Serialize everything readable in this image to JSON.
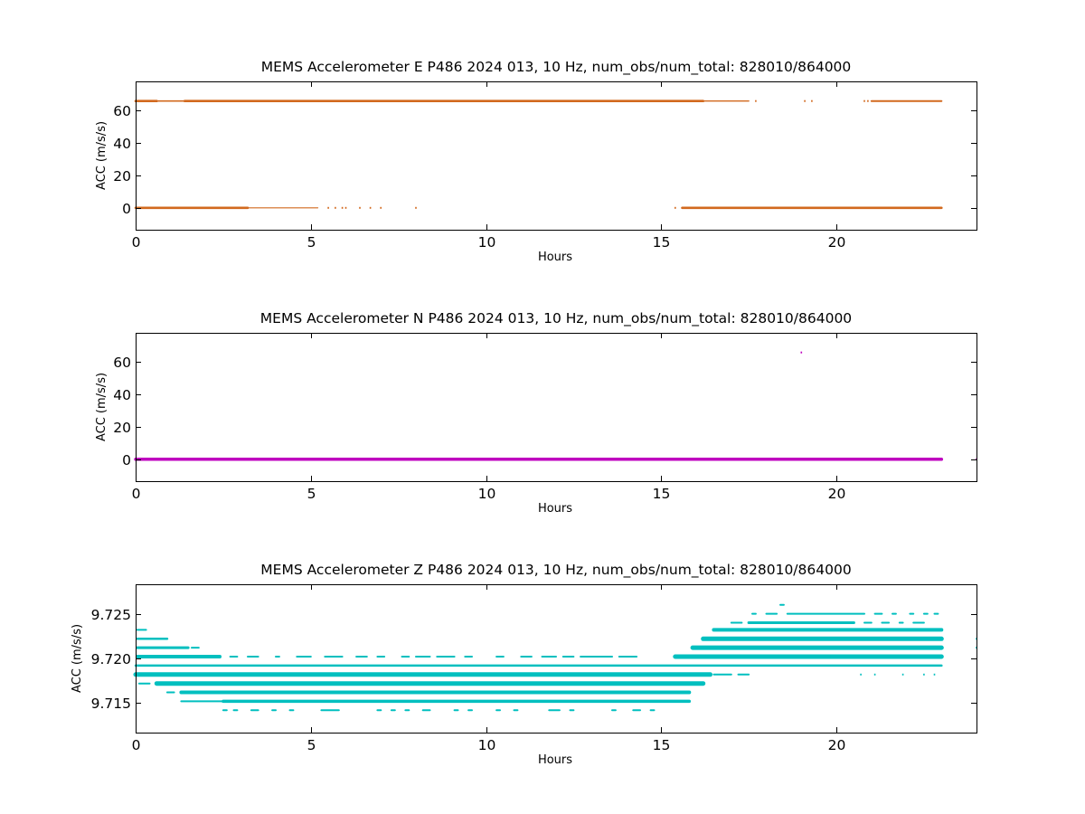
{
  "chart_data": [
    {
      "type": "scatter",
      "title": "MEMS Accelerometer E P486 2024 013, 10 Hz, num_obs/num_total: 828010/864000",
      "xlabel": "Hours",
      "ylabel": "ACC (m/s/s)",
      "xlim": [
        0,
        24
      ],
      "ylim": [
        -13.5,
        78
      ],
      "xticks": [
        0,
        5,
        10,
        15,
        20
      ],
      "yticks": [
        0,
        20,
        40,
        60
      ],
      "color": "#d2691e",
      "series": [
        {
          "bands": [
            {
              "y": 65.9,
              "segments": [
                [
                  0,
                  0.6,
                  2.6
                ],
                [
                  0.6,
                  1.4,
                  1.6
                ],
                [
                  1.4,
                  16.2,
                  2.6
                ],
                [
                  16.2,
                  17.5,
                  1.4
                ],
                [
                  21.0,
                  23.0,
                  2.0
                ]
              ]
            },
            {
              "y": 0.0,
              "segments": [
                [
                  0,
                  3.2,
                  2.6
                ],
                [
                  3.2,
                  5.2,
                  1.2
                ],
                [
                  15.6,
                  23.0,
                  2.6
                ]
              ]
            }
          ],
          "points": [
            [
              17.7,
              65.9
            ],
            [
              19.1,
              65.9
            ],
            [
              19.3,
              65.9
            ],
            [
              20.8,
              65.9
            ],
            [
              20.9,
              65.9
            ],
            [
              5.5,
              0
            ],
            [
              5.7,
              0
            ],
            [
              5.9,
              0
            ],
            [
              6.0,
              0
            ],
            [
              6.4,
              0
            ],
            [
              6.7,
              0
            ],
            [
              7.0,
              0
            ],
            [
              8.0,
              0
            ],
            [
              15.4,
              0
            ]
          ]
        }
      ]
    },
    {
      "type": "scatter",
      "title": "MEMS Accelerometer N P486 2024 013, 10 Hz, num_obs/num_total: 828010/864000",
      "xlabel": "Hours",
      "ylabel": "ACC (m/s/s)",
      "xlim": [
        0,
        24
      ],
      "ylim": [
        -13.5,
        78
      ],
      "xticks": [
        0,
        5,
        10,
        15,
        20
      ],
      "yticks": [
        0,
        20,
        40,
        60
      ],
      "color": "#bf00bf",
      "series": [
        {
          "bands": [
            {
              "y": 0.0,
              "segments": [
                [
                  0,
                  23.0,
                  3.5
                ]
              ]
            }
          ],
          "points": [
            [
              19.0,
              65.9
            ],
            [
              24.0,
              0.0
            ]
          ]
        }
      ]
    },
    {
      "type": "scatter",
      "title": "MEMS Accelerometer Z P486 2024 013, 10 Hz, num_obs/num_total: 828010/864000",
      "xlabel": "Hours",
      "ylabel": "ACC (m/s/s)",
      "xlim": [
        0,
        24
      ],
      "ylim": [
        9.7117,
        9.7283
      ],
      "xticks": [
        0,
        5,
        10,
        15,
        20
      ],
      "yticks": [
        9.715,
        9.72,
        9.725
      ],
      "ytick_labels": [
        "9.715",
        "9.720",
        "9.725"
      ],
      "color": "#00bfbf",
      "series": [
        {
          "bands": [
            {
              "y": 9.726,
              "segments": [
                [
                  18.4,
                  18.5,
                  2
                ]
              ]
            },
            {
              "y": 9.725,
              "segments": [
                [
                  17.6,
                  17.7,
                  2
                ],
                [
                  18.0,
                  18.3,
                  2
                ],
                [
                  18.6,
                  20.8,
                  2
                ],
                [
                  21.1,
                  21.3,
                  2
                ],
                [
                  21.6,
                  21.7,
                  2
                ],
                [
                  22.1,
                  22.2,
                  2
                ],
                [
                  22.5,
                  22.6,
                  2
                ],
                [
                  22.8,
                  22.9,
                  2
                ]
              ]
            },
            {
              "y": 9.724,
              "segments": [
                [
                  17.0,
                  17.3,
                  2
                ],
                [
                  17.5,
                  20.5,
                  3
                ],
                [
                  20.8,
                  21.0,
                  2
                ],
                [
                  21.3,
                  21.5,
                  2
                ],
                [
                  21.8,
                  21.9,
                  2
                ],
                [
                  22.2,
                  22.5,
                  2
                ]
              ]
            },
            {
              "y": 9.7232,
              "segments": [
                [
                  0.05,
                  0.3,
                  2
                ],
                [
                  16.5,
                  23.0,
                  4
                ]
              ]
            },
            {
              "y": 9.7222,
              "segments": [
                [
                  0.05,
                  0.9,
                  2.5
                ],
                [
                  16.2,
                  23.0,
                  5
                ]
              ]
            },
            {
              "y": 9.7212,
              "segments": [
                [
                  0.05,
                  1.5,
                  3
                ],
                [
                  1.6,
                  1.8,
                  2
                ],
                [
                  15.9,
                  23.0,
                  5
                ]
              ]
            },
            {
              "y": 9.7202,
              "segments": [
                [
                  0.05,
                  2.4,
                  4
                ],
                [
                  2.7,
                  2.9,
                  2
                ],
                [
                  3.2,
                  3.5,
                  2
                ],
                [
                  4.0,
                  4.1,
                  2
                ],
                [
                  4.6,
                  5.0,
                  2
                ],
                [
                  5.4,
                  5.9,
                  2
                ],
                [
                  6.3,
                  6.6,
                  2
                ],
                [
                  6.9,
                  7.1,
                  2
                ],
                [
                  7.6,
                  7.8,
                  2
                ],
                [
                  8.0,
                  8.4,
                  2
                ],
                [
                  8.6,
                  9.1,
                  2
                ],
                [
                  9.4,
                  9.6,
                  2
                ],
                [
                  10.3,
                  10.5,
                  2
                ],
                [
                  11.0,
                  11.3,
                  2
                ],
                [
                  11.6,
                  12.0,
                  2
                ],
                [
                  12.2,
                  12.5,
                  2
                ],
                [
                  12.7,
                  13.6,
                  2
                ],
                [
                  13.8,
                  14.3,
                  2
                ],
                [
                  15.4,
                  23.0,
                  5
                ]
              ]
            },
            {
              "y": 9.7192,
              "segments": [
                [
                  0,
                  23.0,
                  2.5
                ]
              ]
            },
            {
              "y": 9.7182,
              "segments": [
                [
                  0,
                  16.4,
                  5
                ],
                [
                  16.5,
                  17.0,
                  2
                ],
                [
                  17.2,
                  17.5,
                  2
                ]
              ]
            },
            {
              "y": 9.7172,
              "segments": [
                [
                  0.1,
                  0.4,
                  2
                ],
                [
                  0.6,
                  16.2,
                  5
                ]
              ]
            },
            {
              "y": 9.7162,
              "segments": [
                [
                  0.9,
                  1.1,
                  2
                ],
                [
                  1.3,
                  15.8,
                  4
                ]
              ]
            },
            {
              "y": 9.7152,
              "segments": [
                [
                  1.3,
                  2.5,
                  2
                ],
                [
                  2.5,
                  15.8,
                  3.5
                ]
              ]
            },
            {
              "y": 9.7142,
              "segments": [
                [
                  2.5,
                  2.6,
                  2
                ],
                [
                  2.8,
                  2.9,
                  2
                ],
                [
                  3.3,
                  3.5,
                  2
                ],
                [
                  3.9,
                  4.0,
                  2
                ],
                [
                  4.4,
                  4.5,
                  2
                ],
                [
                  5.3,
                  5.8,
                  2
                ],
                [
                  6.9,
                  7.0,
                  2
                ],
                [
                  7.3,
                  7.4,
                  2
                ],
                [
                  7.7,
                  7.8,
                  2
                ],
                [
                  8.2,
                  8.4,
                  2
                ],
                [
                  9.1,
                  9.2,
                  2
                ],
                [
                  9.5,
                  9.6,
                  2
                ],
                [
                  10.3,
                  10.4,
                  2
                ],
                [
                  10.8,
                  10.9,
                  2
                ],
                [
                  11.8,
                  12.1,
                  2
                ],
                [
                  12.4,
                  12.5,
                  2
                ],
                [
                  13.6,
                  13.7,
                  2
                ],
                [
                  14.2,
                  14.4,
                  2
                ],
                [
                  14.7,
                  14.8,
                  2
                ]
              ]
            }
          ],
          "points": [
            [
              24.0,
              9.7222
            ],
            [
              24.0,
              9.7212
            ],
            [
              19.1,
              9.7232
            ],
            [
              19.8,
              9.7202
            ],
            [
              20.7,
              9.7182
            ],
            [
              21.1,
              9.7182
            ],
            [
              21.9,
              9.7182
            ],
            [
              22.5,
              9.7182
            ],
            [
              22.8,
              9.7182
            ]
          ]
        }
      ]
    }
  ]
}
